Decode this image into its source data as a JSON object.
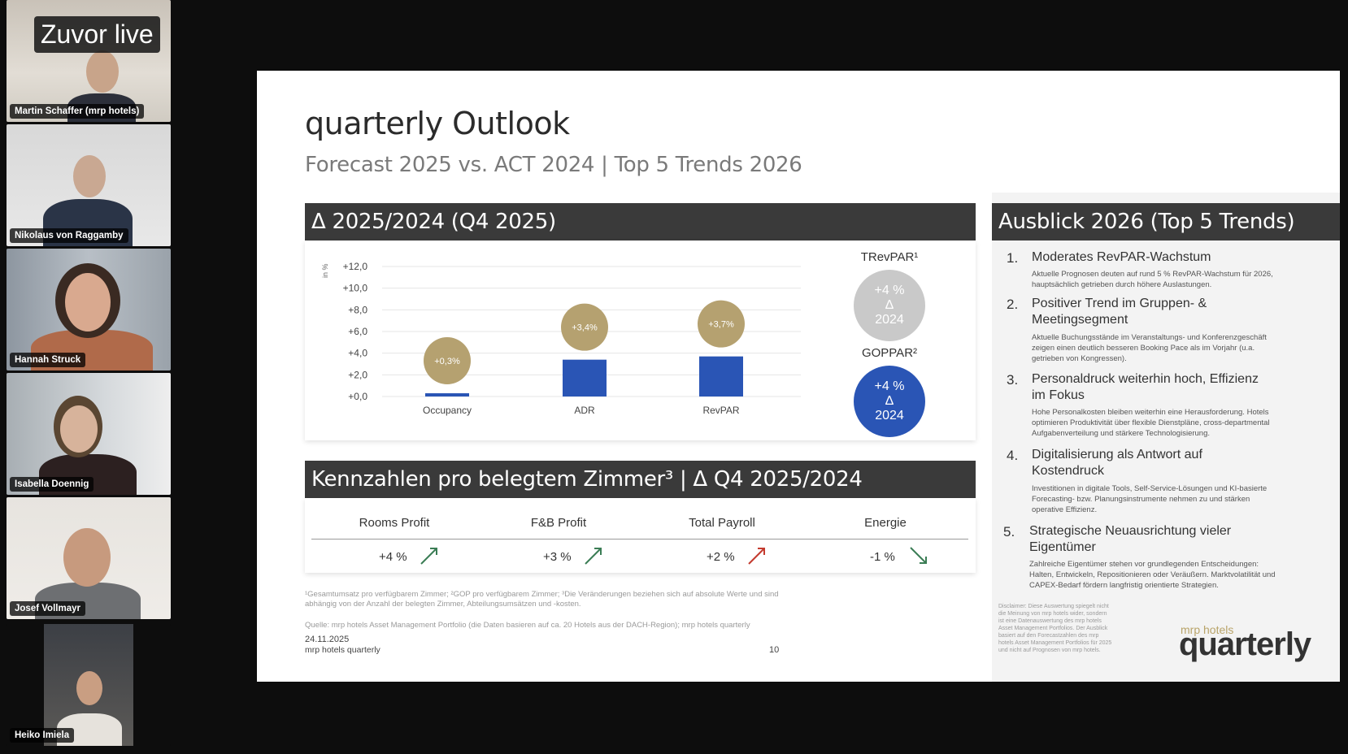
{
  "overlay": {
    "live_label": "Zuvor live"
  },
  "participants": [
    {
      "name": "Martin Schaffer (mrp hotels)"
    },
    {
      "name": "Nikolaus von Raggamby"
    },
    {
      "name": "Hannah Struck"
    },
    {
      "name": "Isabella Doennig"
    },
    {
      "name": "Josef Vollmayr"
    },
    {
      "name": "Heiko Imiela"
    }
  ],
  "slide": {
    "title": "quarterly Outlook",
    "subtitle": "Forecast 2025 vs. ACT 2024 | Top 5 Trends 2026",
    "left_banner": "Δ 2025/2024 (Q4 2025)",
    "kpi_banner": "Kennzahlen pro belegtem Zimmer³ | Δ Q4 2025/2024",
    "right_banner": "Ausblick 2026 (Top 5 Trends)",
    "trevpar": {
      "label": "TRevPAR¹",
      "line1": "+4 %",
      "line2": "Δ",
      "line3": "2024"
    },
    "goppar": {
      "label": "GOPPAR²",
      "line1": "+4 %",
      "line2": "Δ",
      "line3": "2024"
    },
    "kpi_table": {
      "headers": [
        "Rooms Profit",
        "F&B Profit",
        "Total Payroll",
        "Energie"
      ],
      "values": [
        "+4 %",
        "+3 %",
        "+2 %",
        "-1 %"
      ]
    },
    "footnotes": {
      "line1": "¹Gesamtumsatz pro verfügbarem Zimmer; ²GOP pro verfügbarem Zimmer; ³Die Veränderungen beziehen sich auf absolute Werte und sind",
      "line2": "abhängig von der Anzahl der belegten Zimmer, Abteilungsumsätzen und -kosten.",
      "source": "Quelle: mrp hotels Asset Management Portfolio (die Daten basieren auf ca. 20 Hotels aus der DACH-Region); mrp hotels quarterly",
      "date": "24.11.2025",
      "publisher": "mrp hotels quarterly",
      "page": "10"
    },
    "trends": [
      {
        "num": "1.",
        "title": "Moderates RevPAR-Wachstum",
        "text": "Aktuelle Prognosen deuten auf rund 5 % RevPAR-Wachstum für 2026, hauptsächlich getrieben durch höhere Auslastungen."
      },
      {
        "num": "2.",
        "title": "Positiver Trend im Gruppen- & Meetingsegment",
        "text": "Aktuelle Buchungsstände im Veranstaltungs- und Konferenzgeschäft zeigen einen deutlich besseren Booking Pace als im Vorjahr (u.a. getrieben von Kongressen)."
      },
      {
        "num": "3.",
        "title": "Personaldruck weiterhin hoch, Effizienz im Fokus",
        "text": "Hohe Personalkosten bleiben weiterhin eine Herausforderung. Hotels optimieren Produktivität über flexible Dienstpläne, cross-departmental Aufgabenverteilung und stärkere Technologisierung."
      },
      {
        "num": "4.",
        "title": "Digitalisierung als Antwort auf Kostendruck",
        "text": "Investitionen in digitale Tools, Self-Service-Lösungen und KI-basierte Forecasting- bzw. Planungsinstrumente nehmen zu und stärken operative Effizienz."
      },
      {
        "num": "5.",
        "title": "Strategische Neuausrichtung vieler Eigentümer",
        "text": "Zahlreiche Eigentümer stehen vor grundlegenden Entscheidungen: Halten, Entwickeln, Repositionieren oder Veräußern. Marktvolatilität und CAPEX-Bedarf fördern langfristig orientierte Strategien."
      }
    ],
    "disclaimer": "Disclaimer: Diese Auswertung spiegelt nicht die Meinung von mrp hotels wider, sondern ist eine Datenauswertung des mrp hotels Asset Management Portfolios. Der Ausblick basiert auf den Forecastzahlen des mrp hotels Asset Management Portfolios für 2025 und nicht auf Prognosen von mrp hotels.",
    "logo_small": "mrp hotels",
    "logo_big": "quarterly"
  },
  "chart_data": {
    "type": "bar",
    "title": "Δ 2025/2024 (Q4 2025)",
    "ylabel": "in %",
    "xlabel": "",
    "categories": [
      "Occupancy",
      "ADR",
      "RevPAR"
    ],
    "values": [
      0.3,
      3.4,
      3.7
    ],
    "data_labels": [
      "+0,3%",
      "+3,4%",
      "+3,7%"
    ],
    "ylim": [
      0,
      12
    ],
    "yticks": [
      "+0,0",
      "+2,0",
      "+4,0",
      "+6,0",
      "+8,0",
      "+10,0",
      "+12,0"
    ],
    "grid": true,
    "bar_color": "#2a55b5",
    "label_color": "#b5a170"
  }
}
